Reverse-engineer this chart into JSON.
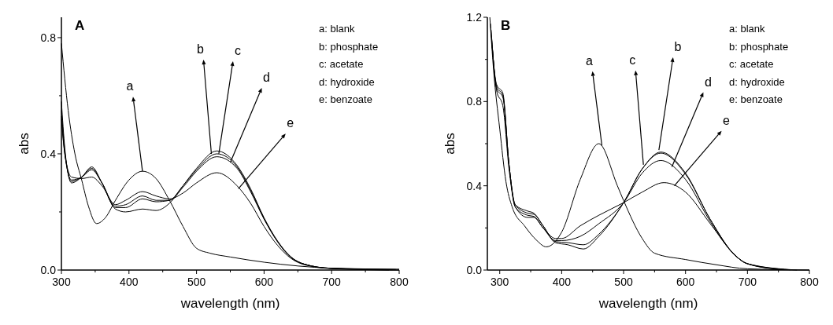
{
  "chart_data": [
    {
      "type": "line",
      "title": "A",
      "xlabel": "wavelength (nm)",
      "ylabel": "abs",
      "xlim": [
        300,
        800
      ],
      "ylim": [
        0,
        0.87
      ],
      "xticks": [
        300,
        {
          "value": 350,
          "label": null
        },
        400,
        {
          "value": 450,
          "label": null
        },
        500,
        {
          "value": 550,
          "label": null
        },
        600,
        {
          "value": 650,
          "label": null
        },
        700,
        {
          "value": 750,
          "label": null
        },
        800
      ],
      "yticks": [
        {
          "value": 0,
          "label": "0.0"
        },
        {
          "value": 0.2,
          "label": null
        },
        0.4,
        {
          "value": 0.6,
          "label": null
        },
        0.8
      ],
      "annotations": [
        "a: blank",
        "b: phosphate",
        "c: acetate",
        "d: hydroxide",
        "e: benzoate",
        {
          "text": "a",
          "x": 420,
          "y": 0.34
        },
        {
          "text": "b",
          "x": 522,
          "y": 0.4
        },
        {
          "text": "c",
          "x": 533,
          "y": 0.4
        },
        {
          "text": "d",
          "x": 550,
          "y": 0.37
        },
        {
          "text": "e",
          "x": 562,
          "y": 0.28
        }
      ],
      "series": [
        {
          "color": "#000000",
          "x": [
            300,
            310,
            320,
            330,
            340,
            352,
            365,
            380,
            400,
            420,
            440,
            460,
            480,
            500,
            520,
            550,
            600,
            650,
            700,
            800
          ],
          "values": [
            0.78,
            0.55,
            0.4,
            0.31,
            0.22,
            0.16,
            0.18,
            0.24,
            0.31,
            0.34,
            0.315,
            0.24,
            0.15,
            0.075,
            0.058,
            0.045,
            0.027,
            0.014,
            0.006,
            0
          ]
        },
        {
          "color": "#000000",
          "x": [
            300,
            305,
            315,
            330,
            345,
            360,
            380,
            395,
            420,
            440,
            460,
            480,
            500,
            530,
            560,
            580,
            600,
            620,
            640,
            660,
            700,
            790
          ],
          "values": [
            0.58,
            0.42,
            0.3,
            0.32,
            0.355,
            0.3,
            0.21,
            0.2,
            0.21,
            0.205,
            0.23,
            0.29,
            0.35,
            0.41,
            0.36,
            0.28,
            0.18,
            0.1,
            0.045,
            0.02,
            0.006,
            0.001
          ]
        },
        {
          "color": "#000000",
          "x": [
            300,
            305,
            315,
            330,
            345,
            360,
            380,
            395,
            420,
            440,
            460,
            480,
            500,
            530,
            560,
            580,
            600,
            620,
            640,
            660,
            700,
            795
          ],
          "values": [
            0.55,
            0.41,
            0.305,
            0.32,
            0.35,
            0.3,
            0.215,
            0.215,
            0.245,
            0.235,
            0.24,
            0.29,
            0.345,
            0.4,
            0.355,
            0.275,
            0.177,
            0.098,
            0.044,
            0.02,
            0.006,
            0.002
          ]
        },
        {
          "color": "#000000",
          "x": [
            300,
            305,
            315,
            330,
            345,
            360,
            380,
            395,
            420,
            440,
            460,
            480,
            500,
            530,
            560,
            580,
            600,
            620,
            640,
            660,
            700,
            800
          ],
          "values": [
            0.53,
            0.4,
            0.31,
            0.32,
            0.345,
            0.3,
            0.22,
            0.225,
            0.255,
            0.24,
            0.24,
            0.285,
            0.34,
            0.39,
            0.35,
            0.27,
            0.175,
            0.097,
            0.043,
            0.02,
            0.006,
            0.003
          ]
        },
        {
          "color": "#000000",
          "x": [
            300,
            305,
            315,
            330,
            345,
            360,
            380,
            395,
            420,
            440,
            460,
            480,
            500,
            530,
            560,
            580,
            600,
            620,
            640,
            660,
            700,
            785
          ],
          "values": [
            0.52,
            0.4,
            0.32,
            0.315,
            0.32,
            0.29,
            0.225,
            0.24,
            0.27,
            0.255,
            0.245,
            0.265,
            0.3,
            0.335,
            0.29,
            0.23,
            0.15,
            0.085,
            0.04,
            0.018,
            0.005,
            0
          ]
        }
      ]
    },
    {
      "type": "line",
      "title": "B",
      "xlabel": "wavelength (nm)",
      "ylabel": "abs",
      "xlim": [
        280,
        800
      ],
      "ylim": [
        0,
        1.2
      ],
      "xticks": [
        300,
        {
          "value": 350,
          "label": null
        },
        400,
        {
          "value": 450,
          "label": null
        },
        500,
        {
          "value": 550,
          "label": null
        },
        600,
        {
          "value": 650,
          "label": null
        },
        700,
        {
          "value": 750,
          "label": null
        },
        800
      ],
      "yticks": [
        {
          "value": 0,
          "label": "0.0"
        },
        {
          "value": 0.2,
          "label": null
        },
        0.4,
        {
          "value": 0.6,
          "label": null
        },
        0.8,
        {
          "value": 1.0,
          "label": null
        },
        1.2
      ],
      "annotations": [
        "a: blank",
        "b: phosphate",
        "c: acetate",
        "d: hydroxide",
        "e: benzoate",
        {
          "text": "a",
          "x": 465,
          "y": 0.59
        },
        {
          "text": "c",
          "x": 532,
          "y": 0.5
        },
        {
          "text": "b",
          "x": 557,
          "y": 0.57
        },
        {
          "text": "d",
          "x": 578,
          "y": 0.49
        },
        {
          "text": "e",
          "x": 582,
          "y": 0.4
        }
      ],
      "series": [
        {
          "color": "#000000",
          "x": [
            284,
            290,
            300,
            310,
            320,
            340,
            360,
            375,
            400,
            430,
            460,
            490,
            500,
            530,
            550,
            600,
            650,
            700,
            800
          ],
          "values": [
            1.2,
            0.95,
            0.67,
            0.42,
            0.3,
            0.21,
            0.14,
            0.11,
            0.18,
            0.43,
            0.6,
            0.4,
            0.33,
            0.15,
            0.08,
            0.05,
            0.025,
            0.006,
            0
          ]
        },
        {
          "color": "#000000",
          "x": [
            285,
            295,
            305,
            315,
            325,
            345,
            355,
            370,
            390,
            410,
            435,
            460,
            500,
            530,
            560,
            600,
            640,
            680,
            700,
            750
          ],
          "values": [
            1.17,
            0.88,
            0.84,
            0.5,
            0.31,
            0.28,
            0.27,
            0.21,
            0.13,
            0.12,
            0.1,
            0.16,
            0.32,
            0.48,
            0.56,
            0.46,
            0.24,
            0.07,
            0.03,
            0.004
          ]
        },
        {
          "color": "#000000",
          "x": [
            286,
            295,
            305,
            315,
            325,
            345,
            355,
            370,
            390,
            410,
            435,
            460,
            500,
            530,
            560,
            600,
            640,
            680,
            700,
            760
          ],
          "values": [
            1.14,
            0.87,
            0.83,
            0.5,
            0.31,
            0.27,
            0.265,
            0.21,
            0.135,
            0.13,
            0.12,
            0.17,
            0.32,
            0.48,
            0.555,
            0.455,
            0.24,
            0.07,
            0.03,
            0.002
          ]
        },
        {
          "color": "#000000",
          "x": [
            287,
            295,
            305,
            315,
            325,
            345,
            355,
            370,
            390,
            400,
            430,
            460,
            500,
            530,
            560,
            600,
            640,
            680,
            700,
            770
          ],
          "values": [
            1.1,
            0.86,
            0.82,
            0.5,
            0.3,
            0.26,
            0.255,
            0.2,
            0.14,
            0.14,
            0.16,
            0.22,
            0.32,
            0.46,
            0.52,
            0.43,
            0.23,
            0.07,
            0.03,
            0.001
          ]
        },
        {
          "color": "#000000",
          "x": [
            288,
            295,
            305,
            315,
            325,
            345,
            355,
            370,
            390,
            400,
            430,
            460,
            500,
            530,
            565,
            600,
            640,
            680,
            700,
            780
          ],
          "values": [
            1.06,
            0.85,
            0.78,
            0.48,
            0.3,
            0.25,
            0.25,
            0.2,
            0.15,
            0.15,
            0.21,
            0.26,
            0.32,
            0.37,
            0.415,
            0.37,
            0.22,
            0.07,
            0.03,
            0
          ]
        }
      ]
    }
  ]
}
